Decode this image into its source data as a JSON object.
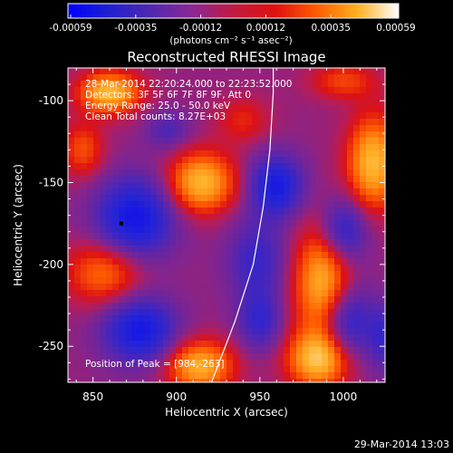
{
  "chart_data": {
    "type": "heatmap",
    "title": "Reconstructed RHESSI Image",
    "xlabel": "Heliocentric X (arcsec)",
    "ylabel": "Heliocentric Y (arcsec)",
    "xlim": [
      835,
      1025
    ],
    "ylim": [
      -272,
      -80
    ],
    "x_ticks": [
      850,
      900,
      950,
      1000
    ],
    "y_ticks": [
      -100,
      -150,
      -200,
      -250
    ],
    "colorbar": {
      "ticks": [
        "-0.00059",
        "-0.00035",
        "-0.00012",
        "0.00012",
        "0.00035",
        "0.00059"
      ],
      "unit_label": "(photons cm⁻² s⁻¹ asec⁻²)",
      "vmin": -0.00059,
      "vmax": 0.00059,
      "colors": [
        "#0000ff",
        "#2020d0",
        "#5028b0",
        "#8a2896",
        "#c01a40",
        "#e01010",
        "#ff5a00",
        "#ffb020",
        "#ffffff"
      ]
    },
    "annotations": [
      "28-Mar-2014 22:20:24.000 to 22:23:52.000",
      "Detectors: 3F 5F 6F 7F 8F 9F, Att 0",
      "Energy Range: 25.0 - 50.0 keV",
      "Clean     Total counts: 8.27E+03"
    ],
    "peak_label": "Position of Peak = [984,-263]",
    "peak_position": [
      984,
      -263
    ],
    "limb_curve": [
      [
        921,
        -272
      ],
      [
        935,
        -235
      ],
      [
        946,
        -200
      ],
      [
        952,
        -165
      ],
      [
        956,
        -130
      ],
      [
        958,
        -95
      ],
      [
        958,
        -80
      ]
    ],
    "marker": [
      867,
      -175
    ],
    "features": [
      {
        "x": 860,
        "y": -95,
        "amp": 1.0,
        "sx": 13,
        "sy": 9
      },
      {
        "x": 915,
        "y": -150,
        "amp": 1.0,
        "sx": 14,
        "sy": 13
      },
      {
        "x": 1018,
        "y": -138,
        "amp": 1.0,
        "sx": 11,
        "sy": 20
      },
      {
        "x": 988,
        "y": -212,
        "amp": 1.0,
        "sx": 12,
        "sy": 25
      },
      {
        "x": 985,
        "y": -258,
        "amp": 1.0,
        "sx": 13,
        "sy": 12
      },
      {
        "x": 914,
        "y": -262,
        "amp": 0.95,
        "sx": 14,
        "sy": 11
      },
      {
        "x": 857,
        "y": -205,
        "amp": 0.65,
        "sx": 16,
        "sy": 14
      },
      {
        "x": 844,
        "y": -130,
        "amp": 0.5,
        "sx": 9,
        "sy": 12
      },
      {
        "x": 1000,
        "y": -88,
        "amp": 0.45,
        "sx": 14,
        "sy": 8
      },
      {
        "x": 940,
        "y": -112,
        "amp": 0.35,
        "sx": 11,
        "sy": 10
      },
      {
        "x": 948,
        "y": -198,
        "amp": -0.55,
        "sx": 12,
        "sy": 18
      },
      {
        "x": 875,
        "y": -172,
        "amp": -1.0,
        "sx": 16,
        "sy": 17
      },
      {
        "x": 878,
        "y": -240,
        "amp": -0.95,
        "sx": 15,
        "sy": 14
      },
      {
        "x": 1000,
        "y": -180,
        "amp": -0.75,
        "sx": 10,
        "sy": 14
      },
      {
        "x": 1002,
        "y": -235,
        "amp": -0.8,
        "sx": 11,
        "sy": 16
      },
      {
        "x": 960,
        "y": -152,
        "amp": -0.9,
        "sx": 11,
        "sy": 13
      },
      {
        "x": 950,
        "y": -235,
        "amp": -0.55,
        "sx": 9,
        "sy": 12
      },
      {
        "x": 895,
        "y": -118,
        "amp": -0.4,
        "sx": 9,
        "sy": 8
      },
      {
        "x": 1024,
        "y": -245,
        "amp": -0.5,
        "sx": 6,
        "sy": 14
      }
    ]
  },
  "footer": {
    "timestamp": "29-Mar-2014 13:03"
  }
}
